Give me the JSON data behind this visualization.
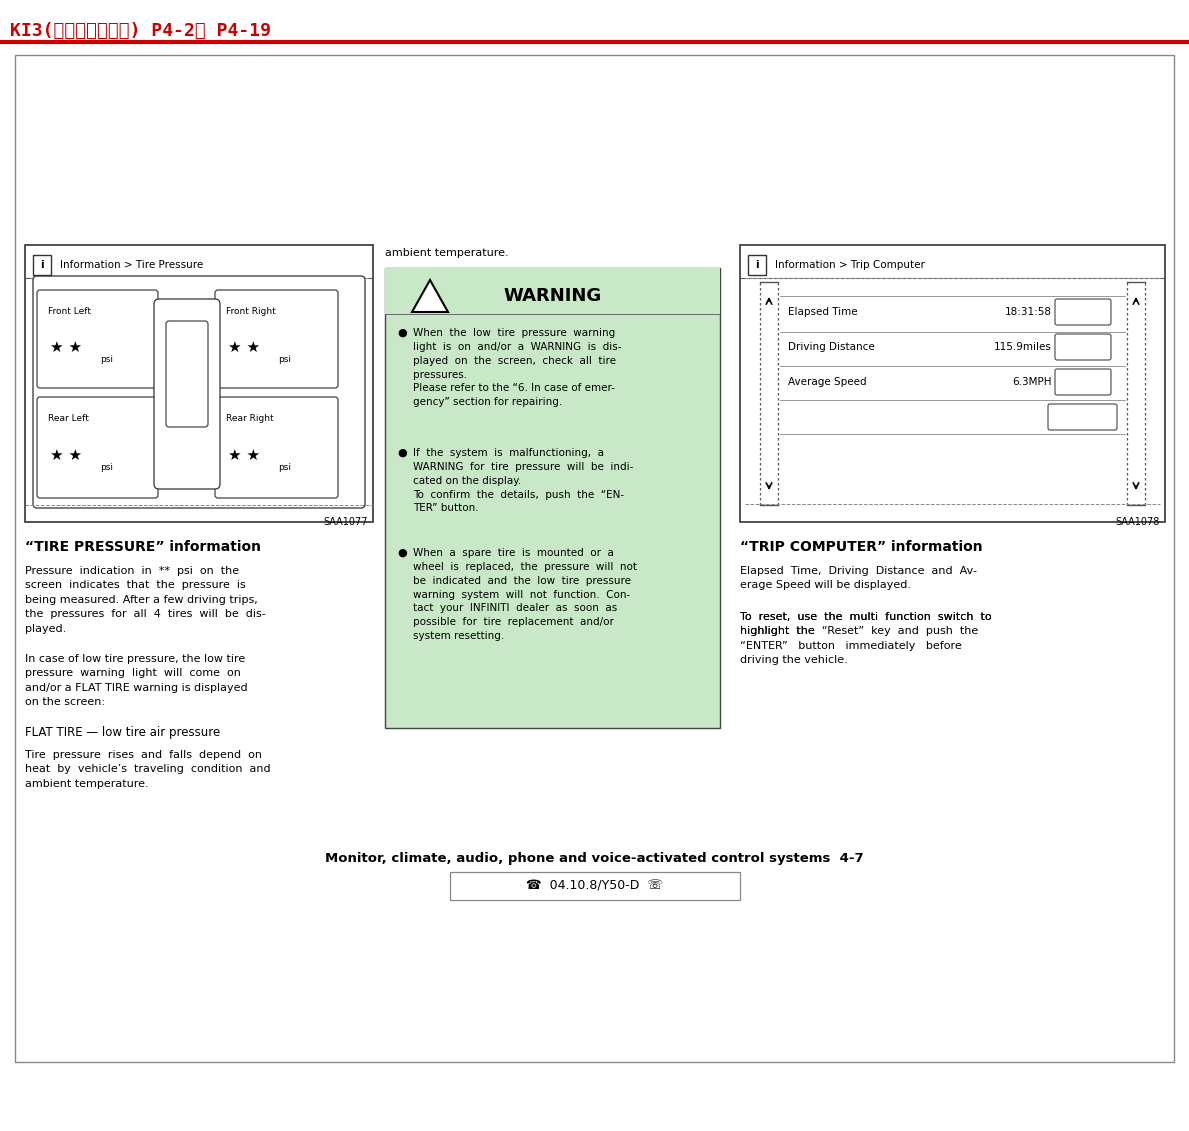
{
  "page_bg": "#ffffff",
  "header_text": "KI3(ﾃｲｲｲｲｲｲ) P4-2･ P4-19",
  "header_color": "#cc0000",
  "header_fontsize": 13,
  "footer_line": "Monitor, climate, audio, phone and voice-activated control systems  4-7",
  "footer_ref": "☎  04.10.8/Y50-D  ☏",
  "tire_screen_title": "Information > Tire Pressure",
  "trip_screen_title": "Information > Trip Computer",
  "tire_section_title": "“TIRE PRESSURE” information",
  "trip_section_title": "“TRIP COMPUTER” information",
  "tire_body1": "Pressure  indication  in  **  psi  on  the\nscreen  indicates  that  the  pressure  is\nbeing measured. After a few driving trips,\nthe  pressures  for  all  4  tires  will  be  dis-\nplayed.",
  "tire_body2": "In case of low tire pressure, the low tire\npressure  warning  light  will  come  on\nand/or a FLAT TIRE warning is displayed\non the screen:",
  "tire_body3": "FLAT TIRE — low tire air pressure",
  "tire_body4": "Tire  pressure  rises  and  falls  depend  on\nheat  by  vehicle’s  traveling  condition  and\nambient temperature.",
  "warning_title": "WARNING",
  "warning_bg": "#c8e8c8",
  "warning_item1": "When  the  low  tire  pressure  warning\nlight  is  on  and/or  a  WARNING  is  dis-\nplayed  on  the  screen,  check  all  tire\npressures.\nPlease refer to the “6. In case of emer-\ngency” section for repairing.",
  "warning_item2": "If  the  system  is  malfunctioning,  a\nWARNING  for  tire  pressure  will  be  indi-\ncated on the display.\nTo  confirm  the  details,  push  the  “EN-\nTER” button.",
  "warning_item3": "When  a  spare  tire  is  mounted  or  a\nwheel  is  replaced,  the  pressure  will  not\nbe  indicated  and  the  low  tire  pressure\nwarning  system  will  not  function.  Con-\ntact  your  INFINITI  dealer  as  soon  as\npossible  for  tire  replacement  and/or\nsystem resetting.",
  "trip_body1": "Elapsed  Time,  Driving  Distance  and  Av-\nerage Speed will be displayed.",
  "trip_body2_pre": "To  reset,  use  the  multi  function  switch  to\nhighlight  the  ",
  "trip_body2_bold": "“Reset”",
  "trip_body2_mid": "  key  and  push  the\n",
  "trip_body2_bold2": "“ENTER”",
  "trip_body2_end": "   button   immediately   before\ndriving the vehicle.",
  "saa1077": "SAA1077",
  "saa1078": "SAA1078",
  "elapsed_time": "18:31:58",
  "driving_distance": "115.9miles",
  "average_speed": "6.3",
  "speed_unit": "MPH",
  "ambient_text": "ambient temperature."
}
